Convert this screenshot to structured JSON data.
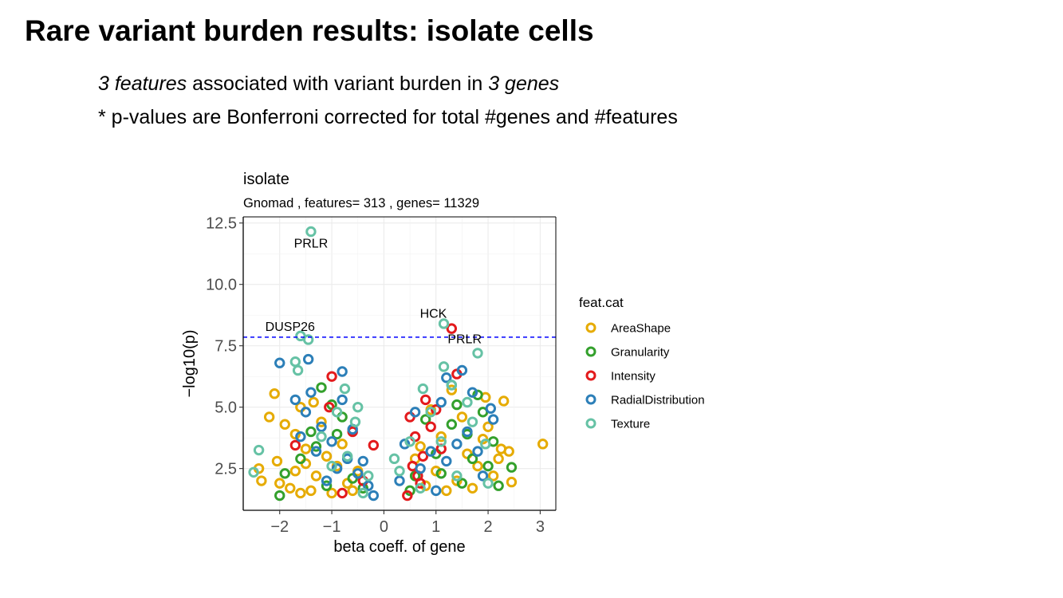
{
  "slide": {
    "title": "Rare variant burden results: isolate cells",
    "bullet1": {
      "part1": "3 features",
      "part2": " associated with variant burden in ",
      "part3": "3 genes"
    },
    "bullet2": "* p-values are Bonferroni corrected for total #genes and #features"
  },
  "chart_data": {
    "type": "scatter",
    "title": "isolate",
    "subtitle": "Gnomad , features= 313 , genes= 11329",
    "xlabel": "beta coeff. of gene",
    "ylabel": "−log10(p)",
    "xlim": [
      -2.7,
      3.3
    ],
    "ylim": [
      0.8,
      12.75
    ],
    "x_ticks": [
      -2,
      -1,
      0,
      1,
      2,
      3
    ],
    "x_tick_labels": [
      "−2",
      "−1",
      "0",
      "1",
      "2",
      "3"
    ],
    "y_ticks": [
      2.5,
      5.0,
      7.5,
      10.0,
      12.5
    ],
    "y_tick_labels": [
      "2.5",
      "5.0",
      "7.5",
      "10.0",
      "12.5"
    ],
    "grid": true,
    "threshold": 7.85,
    "threshold_color": "#0000ff",
    "legend": {
      "title": "feat.cat",
      "placement": "right",
      "entries": [
        "AreaShape",
        "Granularity",
        "Intensity",
        "RadialDistribution",
        "Texture"
      ]
    },
    "colors": {
      "AreaShape": "#E6AB02",
      "Granularity": "#33A02C",
      "Intensity": "#E31A1C",
      "RadialDistribution": "#2C7FB8",
      "Texture": "#66C2A5"
    },
    "series": [
      {
        "name": "AreaShape",
        "points": [
          [
            -2.1,
            5.55
          ],
          [
            -2.2,
            4.6
          ],
          [
            -2.4,
            2.5
          ],
          [
            -2.35,
            2.0
          ],
          [
            -2.05,
            2.8
          ],
          [
            -1.9,
            4.3
          ],
          [
            -1.7,
            3.9
          ],
          [
            -1.6,
            5.0
          ],
          [
            -1.5,
            3.3
          ],
          [
            -1.3,
            2.2
          ],
          [
            -1.1,
            3.0
          ],
          [
            -0.9,
            2.6
          ],
          [
            -0.7,
            1.9
          ],
          [
            -0.5,
            2.4
          ],
          [
            -1.8,
            1.7
          ],
          [
            -1.4,
            1.6
          ],
          [
            -1.0,
            1.5
          ],
          [
            -0.8,
            3.5
          ],
          [
            -1.2,
            4.4
          ],
          [
            -1.5,
            2.7
          ],
          [
            -2.0,
            1.9
          ],
          [
            -1.7,
            2.4
          ],
          [
            -1.35,
            5.2
          ],
          [
            -1.6,
            1.5
          ],
          [
            -0.6,
            1.6
          ],
          [
            3.05,
            3.5
          ],
          [
            2.3,
            5.25
          ],
          [
            2.25,
            3.3
          ],
          [
            2.4,
            3.2
          ],
          [
            2.45,
            1.95
          ],
          [
            2.0,
            4.2
          ],
          [
            1.8,
            2.6
          ],
          [
            1.6,
            3.1
          ],
          [
            1.4,
            2.0
          ],
          [
            1.2,
            1.6
          ],
          [
            1.0,
            2.4
          ],
          [
            0.8,
            1.8
          ],
          [
            0.6,
            2.9
          ],
          [
            1.1,
            3.8
          ],
          [
            1.5,
            4.6
          ],
          [
            1.9,
            3.7
          ],
          [
            2.1,
            2.2
          ],
          [
            0.9,
            4.9
          ],
          [
            1.3,
            5.7
          ],
          [
            0.7,
            3.4
          ],
          [
            1.7,
            1.7
          ],
          [
            2.2,
            2.9
          ],
          [
            1.95,
            5.4
          ]
        ]
      },
      {
        "name": "Granularity",
        "points": [
          [
            -2.0,
            1.4
          ],
          [
            -1.4,
            4.0
          ],
          [
            -1.2,
            5.8
          ],
          [
            -0.9,
            3.9
          ],
          [
            -0.6,
            2.1
          ],
          [
            -1.6,
            2.9
          ],
          [
            -1.1,
            1.8
          ],
          [
            -0.8,
            4.6
          ],
          [
            -1.3,
            3.4
          ],
          [
            -0.4,
            1.7
          ],
          [
            -1.9,
            2.3
          ],
          [
            -1.0,
            5.1
          ],
          [
            2.45,
            2.55
          ],
          [
            2.1,
            3.6
          ],
          [
            1.9,
            4.8
          ],
          [
            1.7,
            2.9
          ],
          [
            1.5,
            1.9
          ],
          [
            1.3,
            4.3
          ],
          [
            1.0,
            3.1
          ],
          [
            0.8,
            4.5
          ],
          [
            0.6,
            2.2
          ],
          [
            1.8,
            5.5
          ],
          [
            1.4,
            5.1
          ],
          [
            2.2,
            1.8
          ],
          [
            1.1,
            2.3
          ],
          [
            1.6,
            3.9
          ],
          [
            0.5,
            1.6
          ],
          [
            2.0,
            2.6
          ]
        ]
      },
      {
        "name": "Intensity",
        "points": [
          [
            -1.0,
            6.25
          ],
          [
            -1.7,
            3.45
          ],
          [
            -1.05,
            5.0
          ],
          [
            -0.6,
            4.0
          ],
          [
            -0.2,
            3.45
          ],
          [
            -0.4,
            2.0
          ],
          [
            -0.8,
            1.5
          ],
          [
            1.3,
            8.2
          ],
          [
            1.4,
            6.35
          ],
          [
            0.8,
            5.3
          ],
          [
            0.5,
            4.6
          ],
          [
            0.6,
            3.8
          ],
          [
            0.55,
            2.6
          ],
          [
            0.7,
            1.9
          ],
          [
            0.9,
            4.2
          ],
          [
            1.1,
            3.3
          ],
          [
            0.65,
            2.2
          ],
          [
            0.45,
            1.4
          ],
          [
            0.75,
            3.0
          ],
          [
            1.0,
            4.9
          ]
        ]
      },
      {
        "name": "RadialDistribution",
        "points": [
          [
            -2.0,
            6.8
          ],
          [
            -1.45,
            6.95
          ],
          [
            -0.8,
            6.45
          ],
          [
            -1.7,
            5.3
          ],
          [
            -1.5,
            4.8
          ],
          [
            -1.2,
            4.2
          ],
          [
            -1.0,
            3.6
          ],
          [
            -0.7,
            2.9
          ],
          [
            -0.5,
            2.3
          ],
          [
            -0.3,
            1.8
          ],
          [
            -1.3,
            3.2
          ],
          [
            -0.9,
            2.5
          ],
          [
            -0.6,
            4.1
          ],
          [
            -1.6,
            3.8
          ],
          [
            -1.1,
            2.0
          ],
          [
            -0.4,
            2.8
          ],
          [
            -1.4,
            5.6
          ],
          [
            -0.8,
            5.3
          ],
          [
            -0.2,
            1.4
          ],
          [
            1.5,
            6.5
          ],
          [
            1.3,
            5.9
          ],
          [
            1.2,
            6.2
          ],
          [
            1.7,
            5.6
          ],
          [
            2.1,
            4.5
          ],
          [
            2.05,
            4.95
          ],
          [
            1.6,
            4.0
          ],
          [
            1.4,
            3.5
          ],
          [
            1.1,
            5.2
          ],
          [
            0.9,
            3.2
          ],
          [
            0.7,
            2.5
          ],
          [
            0.4,
            3.5
          ],
          [
            0.3,
            2.0
          ],
          [
            1.8,
            3.2
          ],
          [
            1.9,
            2.2
          ],
          [
            1.0,
            1.6
          ],
          [
            0.6,
            4.8
          ],
          [
            1.2,
            2.8
          ]
        ]
      },
      {
        "name": "Texture",
        "points": [
          [
            -1.4,
            12.15
          ],
          [
            -1.6,
            7.9
          ],
          [
            -1.45,
            7.75
          ],
          [
            -1.7,
            6.85
          ],
          [
            -1.65,
            6.5
          ],
          [
            -0.75,
            5.75
          ],
          [
            -0.5,
            5.0
          ],
          [
            -2.5,
            2.35
          ],
          [
            -2.4,
            3.25
          ],
          [
            -0.55,
            4.4
          ],
          [
            -0.9,
            4.8
          ],
          [
            -1.2,
            3.8
          ],
          [
            -0.7,
            3.0
          ],
          [
            -0.3,
            2.2
          ],
          [
            -1.0,
            2.6
          ],
          [
            -0.4,
            1.5
          ],
          [
            1.15,
            8.4
          ],
          [
            1.8,
            7.2
          ],
          [
            1.15,
            6.65
          ],
          [
            0.75,
            5.75
          ],
          [
            1.3,
            5.9
          ],
          [
            0.9,
            4.8
          ],
          [
            0.5,
            3.6
          ],
          [
            0.2,
            2.9
          ],
          [
            0.3,
            2.4
          ],
          [
            1.7,
            4.4
          ],
          [
            1.95,
            3.5
          ],
          [
            2.0,
            1.9
          ],
          [
            1.4,
            2.2
          ],
          [
            0.7,
            1.7
          ],
          [
            1.1,
            3.6
          ],
          [
            1.6,
            5.2
          ]
        ]
      }
    ],
    "annotations": [
      {
        "text": "PRLR",
        "x": -1.4,
        "y": 11.5
      },
      {
        "text": "DUSP26",
        "x": -1.8,
        "y": 8.1
      },
      {
        "text": "HCK",
        "x": 0.95,
        "y": 8.65
      },
      {
        "text": "PRLR",
        "x": 1.55,
        "y": 7.6
      }
    ]
  }
}
